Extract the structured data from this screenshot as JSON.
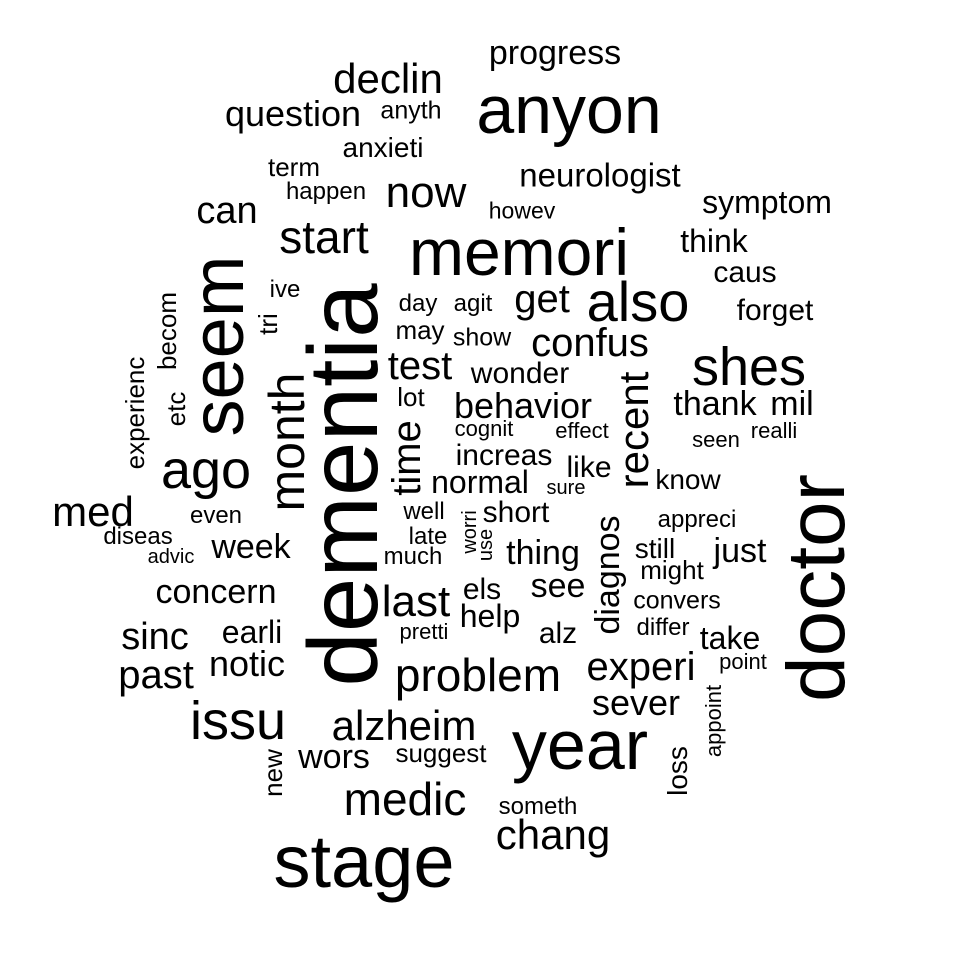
{
  "text_color": "#000000",
  "background_color": "#ffffff",
  "words": [
    "anyon",
    "progress",
    "declin",
    "question",
    "anyth",
    "anxieti",
    "term",
    "happen",
    "neurologist",
    "now",
    "howev",
    "symptom",
    "can",
    "start",
    "memori",
    "think",
    "caus",
    "seem",
    "dementia",
    "ive",
    "tri",
    "becom",
    "day",
    "agit",
    "get",
    "also",
    "forget",
    "may",
    "show",
    "confus",
    "experienc",
    "etc",
    "month",
    "test",
    "wonder",
    "shes",
    "lot",
    "behavior",
    "thank",
    "mil",
    "cognit",
    "effect",
    "seen",
    "realli",
    "ago",
    "time",
    "increas",
    "recent",
    "like",
    "know",
    "doctor",
    "normal",
    "sure",
    "med",
    "even",
    "well",
    "worri",
    "short",
    "diagnos",
    "appreci",
    "diseas",
    "advic",
    "week",
    "late",
    "use",
    "thing",
    "still",
    "just",
    "much",
    "might",
    "concern",
    "els",
    "see",
    "last",
    "convers",
    "help",
    "alz",
    "differ",
    "sinc",
    "earli",
    "pretti",
    "take",
    "notic",
    "experi",
    "point",
    "past",
    "problem",
    "appoint",
    "issu",
    "sever",
    "alzheim",
    "wors",
    "suggest",
    "year",
    "new",
    "loss",
    "medic",
    "someth",
    "chang",
    "stage"
  ]
}
